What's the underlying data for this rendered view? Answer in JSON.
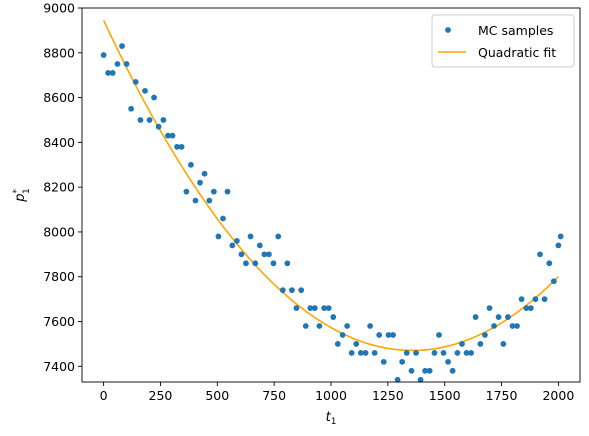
{
  "chart_data": {
    "type": "scatter",
    "xlabel": "t",
    "xlabel_sub": "1",
    "ylabel": "p",
    "ylabel_sub": "1",
    "ylabel_sup": "*",
    "xlim": [
      -95,
      2095
    ],
    "ylim": [
      7330,
      9000
    ],
    "x_ticks": [
      0,
      250,
      500,
      750,
      1000,
      1250,
      1500,
      1750,
      2000
    ],
    "y_ticks": [
      7400,
      7600,
      7800,
      8000,
      8200,
      8400,
      8600,
      8800,
      9000
    ],
    "grid": false,
    "legend_position": "top-right",
    "colors": {
      "scatter": "#1f77b4",
      "fit": "#ffa500"
    },
    "series": [
      {
        "name": "MC samples",
        "kind": "scatter",
        "points": [
          [
            0,
            8790
          ],
          [
            20,
            8710
          ],
          [
            40,
            8710
          ],
          [
            61,
            8750
          ],
          [
            81,
            8830
          ],
          [
            101,
            8750
          ],
          [
            121,
            8550
          ],
          [
            141,
            8670
          ],
          [
            162,
            8500
          ],
          [
            182,
            8630
          ],
          [
            202,
            8500
          ],
          [
            222,
            8600
          ],
          [
            242,
            8470
          ],
          [
            263,
            8500
          ],
          [
            283,
            8430
          ],
          [
            303,
            8430
          ],
          [
            323,
            8380
          ],
          [
            343,
            8380
          ],
          [
            364,
            8180
          ],
          [
            384,
            8300
          ],
          [
            404,
            8140
          ],
          [
            424,
            8220
          ],
          [
            444,
            8260
          ],
          [
            465,
            8140
          ],
          [
            485,
            8180
          ],
          [
            505,
            7980
          ],
          [
            525,
            8060
          ],
          [
            545,
            8180
          ],
          [
            566,
            7940
          ],
          [
            586,
            7960
          ],
          [
            606,
            7900
          ],
          [
            626,
            7860
          ],
          [
            646,
            7980
          ],
          [
            667,
            7860
          ],
          [
            687,
            7940
          ],
          [
            707,
            7900
          ],
          [
            727,
            7900
          ],
          [
            747,
            7860
          ],
          [
            768,
            7980
          ],
          [
            788,
            7740
          ],
          [
            808,
            7860
          ],
          [
            828,
            7740
          ],
          [
            848,
            7660
          ],
          [
            869,
            7740
          ],
          [
            889,
            7580
          ],
          [
            909,
            7660
          ],
          [
            929,
            7660
          ],
          [
            949,
            7580
          ],
          [
            970,
            7660
          ],
          [
            990,
            7660
          ],
          [
            1010,
            7620
          ],
          [
            1030,
            7500
          ],
          [
            1051,
            7540
          ],
          [
            1071,
            7580
          ],
          [
            1091,
            7460
          ],
          [
            1111,
            7500
          ],
          [
            1131,
            7460
          ],
          [
            1152,
            7460
          ],
          [
            1172,
            7580
          ],
          [
            1192,
            7460
          ],
          [
            1212,
            7540
          ],
          [
            1232,
            7420
          ],
          [
            1253,
            7540
          ],
          [
            1273,
            7540
          ],
          [
            1293,
            7340
          ],
          [
            1313,
            7420
          ],
          [
            1333,
            7460
          ],
          [
            1354,
            7380
          ],
          [
            1374,
            7460
          ],
          [
            1394,
            7340
          ],
          [
            1414,
            7380
          ],
          [
            1434,
            7380
          ],
          [
            1455,
            7460
          ],
          [
            1475,
            7540
          ],
          [
            1495,
            7460
          ],
          [
            1515,
            7420
          ],
          [
            1535,
            7380
          ],
          [
            1556,
            7460
          ],
          [
            1576,
            7500
          ],
          [
            1596,
            7460
          ],
          [
            1616,
            7460
          ],
          [
            1636,
            7620
          ],
          [
            1657,
            7500
          ],
          [
            1677,
            7540
          ],
          [
            1697,
            7660
          ],
          [
            1717,
            7580
          ],
          [
            1737,
            7620
          ],
          [
            1758,
            7500
          ],
          [
            1778,
            7620
          ],
          [
            1798,
            7580
          ],
          [
            1818,
            7580
          ],
          [
            1838,
            7700
          ],
          [
            1859,
            7660
          ],
          [
            1879,
            7660
          ],
          [
            1899,
            7700
          ],
          [
            1919,
            7900
          ],
          [
            1939,
            7700
          ],
          [
            1960,
            7860
          ],
          [
            1980,
            7780
          ],
          [
            2000,
            7940
          ],
          [
            2010,
            7980
          ]
        ]
      },
      {
        "name": "Quadratic fit",
        "kind": "line",
        "function": "8945 - 2.172*t + 0.0008*t^2",
        "x_range": [
          0,
          2000
        ]
      }
    ]
  }
}
